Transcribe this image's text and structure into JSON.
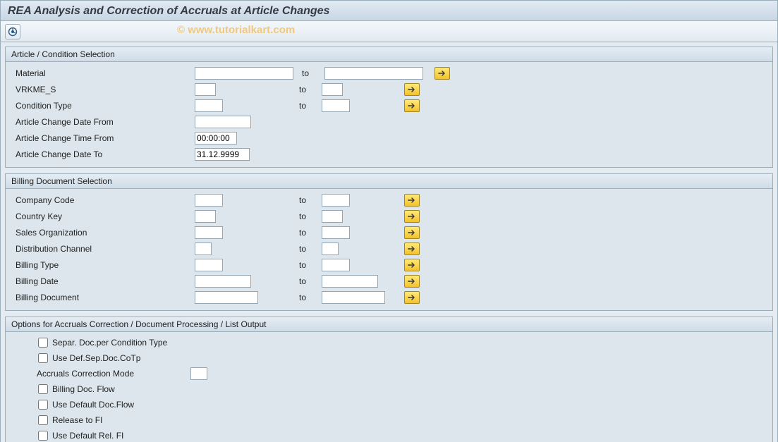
{
  "title": "REA Analysis and Correction of Accruals at Article Changes",
  "watermark": "© www.tutorialkart.com",
  "toLabel": "to",
  "icons": {
    "execute": "execute-icon",
    "multi": "multiple-selection-icon"
  },
  "colors": {
    "multi_bg_top": "#ffe978",
    "multi_bg_bottom": "#f3c22b",
    "multi_border": "#a28820",
    "arrow_fill": "#3b3b3b"
  },
  "group1": {
    "title": "Article / Condition Selection",
    "rows": [
      {
        "label": "Material",
        "from_w": 140,
        "to_w": 140,
        "multi": true
      },
      {
        "label": "VRKME_S",
        "from_w": 30,
        "to_w": 30,
        "multi": true
      },
      {
        "label": "Condition Type",
        "from_w": 40,
        "to_w": 40,
        "multi": true
      },
      {
        "label": "Article Change Date From",
        "from_w": 80,
        "to_w": null
      },
      {
        "label": "Article Change Time From",
        "from_w": 60,
        "to_w": null,
        "from_val": "00:00:00"
      },
      {
        "label": "Article Change Date To",
        "from_w": 78,
        "to_w": null,
        "from_val": "31.12.9999"
      }
    ]
  },
  "group2": {
    "title": "Billing Document Selection",
    "rows": [
      {
        "label": "Company Code",
        "from_w": 40,
        "to_w": 40,
        "multi": true
      },
      {
        "label": "Country Key",
        "from_w": 30,
        "to_w": 30,
        "multi": true
      },
      {
        "label": "Sales Organization",
        "from_w": 40,
        "to_w": 40,
        "multi": true
      },
      {
        "label": "Distribution Channel",
        "from_w": 24,
        "to_w": 24,
        "multi": true
      },
      {
        "label": "Billing Type",
        "from_w": 40,
        "to_w": 40,
        "multi": true
      },
      {
        "label": "Billing Date",
        "from_w": 80,
        "to_w": 80,
        "multi": true
      },
      {
        "label": "Billing Document",
        "from_w": 90,
        "to_w": 90,
        "multi": true
      }
    ]
  },
  "group3": {
    "title": "Options for Accruals Correction / Document Processing / List Output",
    "items": [
      {
        "type": "check",
        "label": "Separ. Doc.per Condition Type"
      },
      {
        "type": "check",
        "label": "Use Def.Sep.Doc.CoTp"
      },
      {
        "type": "input",
        "label": "Accruals Correction Mode",
        "w": 24
      },
      {
        "type": "check",
        "label": "Billing Doc. Flow"
      },
      {
        "type": "check",
        "label": "Use Default Doc.Flow"
      },
      {
        "type": "check",
        "label": "Release to FI"
      },
      {
        "type": "check",
        "label": "Use Default Rel. FI"
      }
    ]
  }
}
